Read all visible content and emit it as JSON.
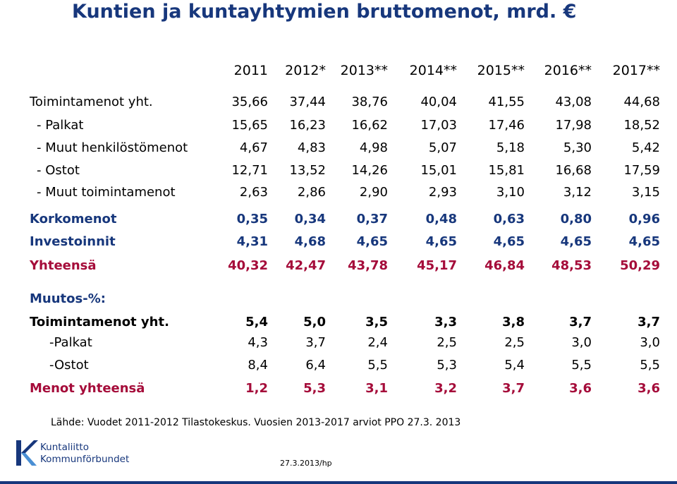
{
  "title": "Kuntien ja kuntayhtymien bruttomenot, mrd. €",
  "years": [
    "2011",
    "2012*",
    "2013**",
    "2014**",
    "2015**",
    "2016**",
    "2017**"
  ],
  "rows": {
    "toimintamenot": {
      "label": "Toimintamenot yht.",
      "values": [
        "35,66",
        "37,44",
        "38,76",
        "40,04",
        "41,55",
        "43,08",
        "44,68"
      ]
    },
    "palkat": {
      "label": "- Palkat",
      "values": [
        "15,65",
        "16,23",
        "16,62",
        "17,03",
        "17,46",
        "17,98",
        "18,52"
      ]
    },
    "muut_henk": {
      "label": "- Muut henkilöstömenot",
      "values": [
        "4,67",
        "4,83",
        "4,98",
        "5,07",
        "5,18",
        "5,30",
        "5,42"
      ]
    },
    "ostot": {
      "label": "- Ostot",
      "values": [
        "12,71",
        "13,52",
        "14,26",
        "15,01",
        "15,81",
        "16,68",
        "17,59"
      ]
    },
    "muut_toim": {
      "label": "- Muut toimintamenot",
      "values": [
        "2,63",
        "2,86",
        "2,90",
        "2,93",
        "3,10",
        "3,12",
        "3,15"
      ]
    },
    "korkomenot": {
      "label": "Korkomenot",
      "values": [
        "0,35",
        "0,34",
        "0,37",
        "0,48",
        "0,63",
        "0,80",
        "0,96"
      ]
    },
    "investoinnit": {
      "label": "Investoinnit",
      "values": [
        "4,31",
        "4,68",
        "4,65",
        "4,65",
        "4,65",
        "4,65",
        "4,65"
      ]
    },
    "yhteensa": {
      "label": "Yhteensä",
      "values": [
        "40,32",
        "42,47",
        "43,78",
        "45,17",
        "46,84",
        "48,53",
        "50,29"
      ]
    }
  },
  "muutos_heading": "Muutos-%:",
  "muutos": {
    "toimintamenot": {
      "label": "Toimintamenot yht.",
      "values": [
        "5,4",
        "5,0",
        "3,5",
        "3,3",
        "3,8",
        "3,7",
        "3,7"
      ]
    },
    "palkat": {
      "label": "-Palkat",
      "values": [
        "4,3",
        "3,7",
        "2,4",
        "2,5",
        "2,5",
        "3,0",
        "3,0"
      ]
    },
    "ostot": {
      "label": "-Ostot",
      "values": [
        "8,4",
        "6,4",
        "5,5",
        "5,3",
        "5,4",
        "5,5",
        "5,5"
      ]
    },
    "menot": {
      "label": "Menot yhteensä",
      "values": [
        "1,2",
        "5,3",
        "3,1",
        "3,2",
        "3,7",
        "3,6",
        "3,6"
      ]
    }
  },
  "source": "Lähde: Vuodet 2011-2012 Tilastokeskus. Vuosien 2013-2017  arviot PPO 27.3. 2013",
  "logo": {
    "line1": "Kuntaliitto",
    "line2": "Kommunförbundet"
  },
  "footer_date": "27.3.2013/hp",
  "colors": {
    "navy": "#17377c",
    "maroon": "#a50c3a",
    "logo_blue": "#4a8fd4"
  }
}
